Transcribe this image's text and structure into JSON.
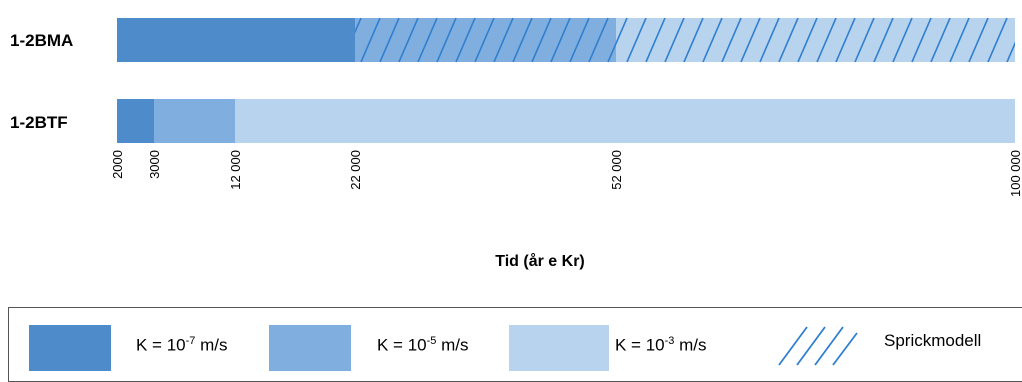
{
  "colors": {
    "dark": "#4e8bcb",
    "mid": "#80aedf",
    "light": "#b8d3ee",
    "hatch": "#2f7fcf"
  },
  "axis": {
    "title": "Tid (år e Kr)",
    "min": 2000,
    "max": 100000,
    "ticks": [
      "2000",
      "3000",
      "12 000",
      "22 000",
      "52 000",
      "100 000"
    ]
  },
  "chart_data": {
    "type": "bar",
    "orientation": "horizontal-stacked",
    "xlabel": "Tid (år e Kr)",
    "xlim": [
      2000,
      100000
    ],
    "xticks": [
      2000,
      3000,
      12000,
      22000,
      52000,
      100000
    ],
    "categories": [
      "1-2BMA",
      "1-2BTF"
    ],
    "rows": [
      {
        "label": "1-2BMA",
        "segments": [
          {
            "from": 2000,
            "to": 22000,
            "class": "K = 10-7 m/s",
            "hatched": false
          },
          {
            "from": 22000,
            "to": 52000,
            "class": "K = 10-5 m/s",
            "hatched": true
          },
          {
            "from": 52000,
            "to": 100000,
            "class": "K = 10-3 m/s",
            "hatched": true
          }
        ]
      },
      {
        "label": "1-2BTF",
        "segments": [
          {
            "from": 2000,
            "to": 3000,
            "class": "K = 10-7 m/s",
            "hatched": false
          },
          {
            "from": 3000,
            "to": 12000,
            "class": "K = 10-5 m/s",
            "hatched": false
          },
          {
            "from": 12000,
            "to": 100000,
            "class": "K = 10-3 m/s",
            "hatched": false
          }
        ]
      }
    ]
  },
  "legend": {
    "k7": {
      "prefix": "K = 10",
      "exp": "-7",
      "suffix": " m/s"
    },
    "k5": {
      "prefix": "K = 10",
      "exp": "-5",
      "suffix": " m/s"
    },
    "k3": {
      "prefix": "K = 10",
      "exp": "-3",
      "suffix": " m/s"
    },
    "spricka": "Sprickmodell"
  }
}
